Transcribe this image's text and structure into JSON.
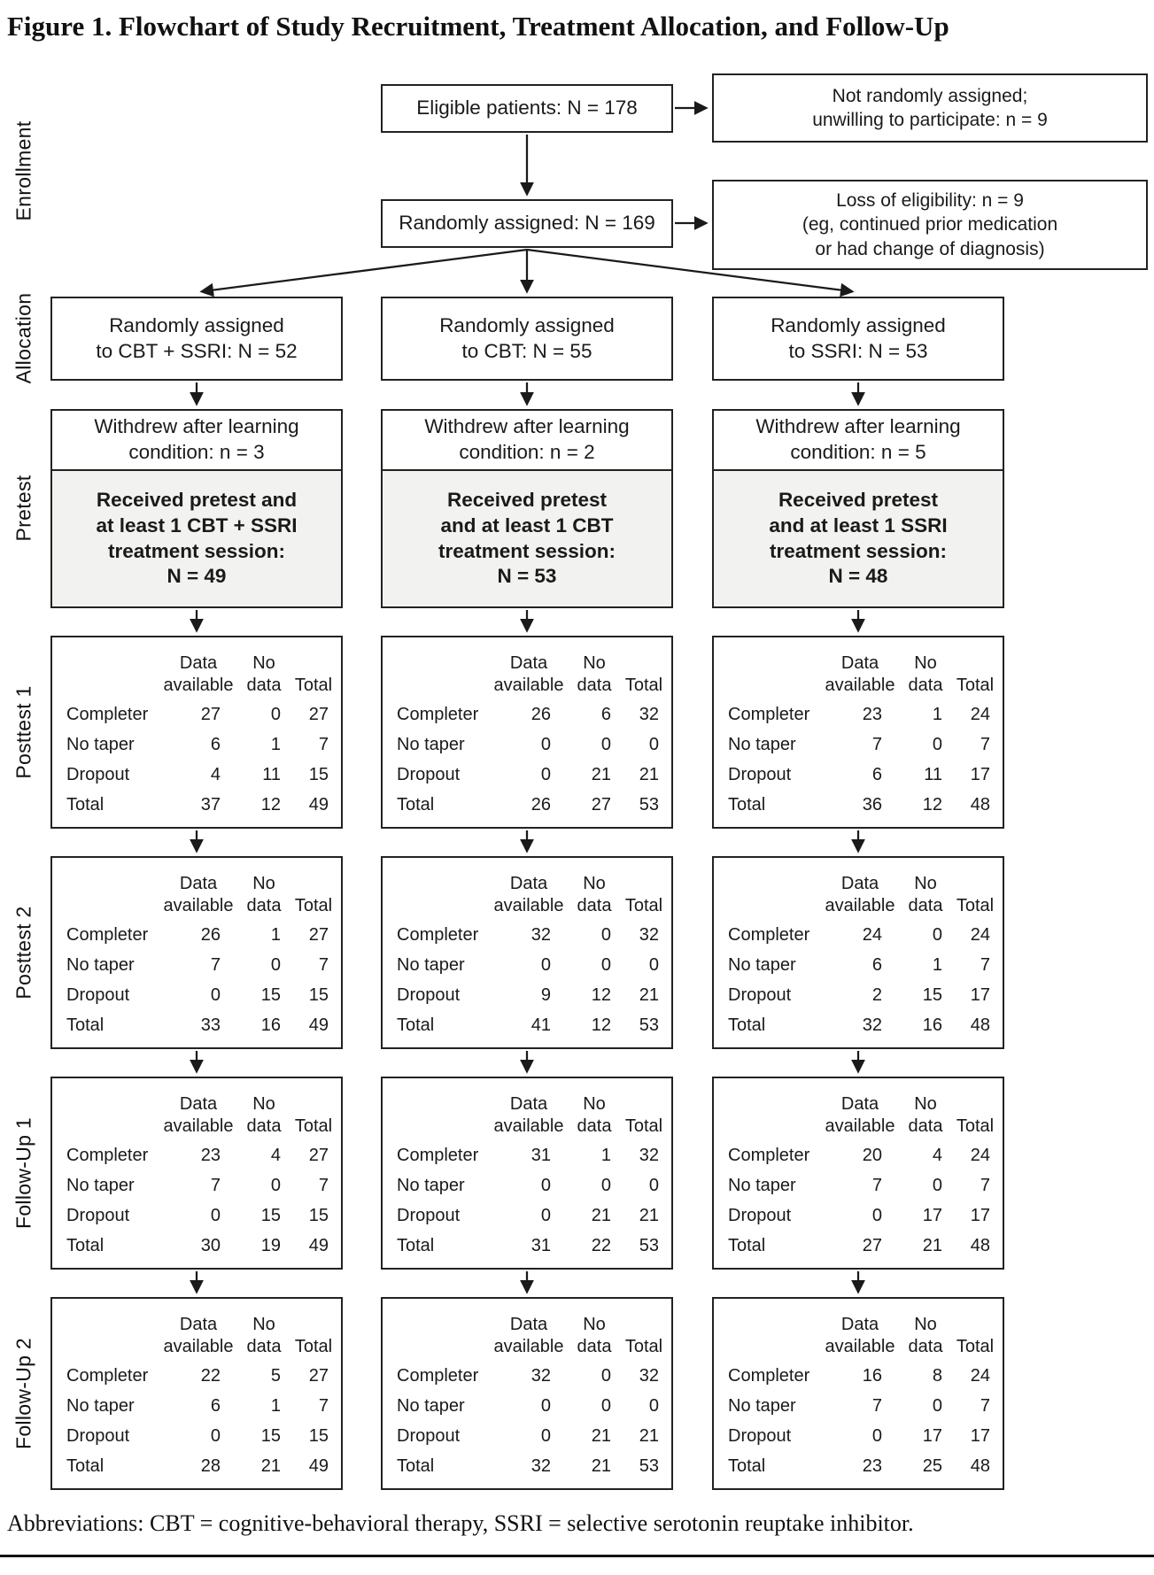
{
  "figure": {
    "title": "Figure 1. Flowchart of Study Recruitment, Treatment Allocation, and Follow-Up",
    "footnote": "Abbreviations: CBT = cognitive-behavioral therapy, SSRI = selective serotonin reuptake inhibitor."
  },
  "stage_labels": [
    "Enrollment",
    "Allocation",
    "Pretest",
    "Posttest 1",
    "Posttest 2",
    "Follow-Up 1",
    "Follow-Up 2"
  ],
  "enrollment": {
    "eligible": "Eligible patients: N = 178",
    "not_assigned": "Not randomly assigned;\nunwilling to participate: n = 9",
    "randomized": "Randomly assigned: N = 169",
    "loss_of_eligibility": "Loss of eligibility: n = 9\n(eg, continued prior medication\nor had change of diagnosis)"
  },
  "arms": [
    {
      "allocation": "Randomly assigned\nto CBT + SSRI: N = 52",
      "withdrew": "Withdrew after learning\ncondition: n = 3",
      "pretest": "Received pretest and\nat least 1 CBT + SSRI\ntreatment session:\nN = 49"
    },
    {
      "allocation": "Randomly assigned\nto CBT: N = 55",
      "withdrew": "Withdrew after learning\ncondition: n = 2",
      "pretest": "Received pretest\nand at least 1 CBT\ntreatment session:\nN = 53"
    },
    {
      "allocation": "Randomly assigned\nto SSRI: N = 53",
      "withdrew": "Withdrew after learning\ncondition: n = 5",
      "pretest": "Received pretest\nand at least 1 SSRI\ntreatment session:\nN = 48"
    }
  ],
  "table_header": {
    "label": "",
    "available": "Data available",
    "no_data": "No data",
    "total": "Total"
  },
  "row_labels": [
    "Completer",
    "No taper",
    "Dropout",
    "Total"
  ],
  "stages": [
    {
      "name": "Posttest 1",
      "tables": [
        [
          [
            27,
            0,
            27
          ],
          [
            6,
            1,
            7
          ],
          [
            4,
            11,
            15
          ],
          [
            37,
            12,
            49
          ]
        ],
        [
          [
            26,
            6,
            32
          ],
          [
            0,
            0,
            0
          ],
          [
            0,
            21,
            21
          ],
          [
            26,
            27,
            53
          ]
        ],
        [
          [
            23,
            1,
            24
          ],
          [
            7,
            0,
            7
          ],
          [
            6,
            11,
            17
          ],
          [
            36,
            12,
            48
          ]
        ]
      ]
    },
    {
      "name": "Posttest 2",
      "tables": [
        [
          [
            26,
            1,
            27
          ],
          [
            7,
            0,
            7
          ],
          [
            0,
            15,
            15
          ],
          [
            33,
            16,
            49
          ]
        ],
        [
          [
            32,
            0,
            32
          ],
          [
            0,
            0,
            0
          ],
          [
            9,
            12,
            21
          ],
          [
            41,
            12,
            53
          ]
        ],
        [
          [
            24,
            0,
            24
          ],
          [
            6,
            1,
            7
          ],
          [
            2,
            15,
            17
          ],
          [
            32,
            16,
            48
          ]
        ]
      ]
    },
    {
      "name": "Follow-Up 1",
      "tables": [
        [
          [
            23,
            4,
            27
          ],
          [
            7,
            0,
            7
          ],
          [
            0,
            15,
            15
          ],
          [
            30,
            19,
            49
          ]
        ],
        [
          [
            31,
            1,
            32
          ],
          [
            0,
            0,
            0
          ],
          [
            0,
            21,
            21
          ],
          [
            31,
            22,
            53
          ]
        ],
        [
          [
            20,
            4,
            24
          ],
          [
            7,
            0,
            7
          ],
          [
            0,
            17,
            17
          ],
          [
            27,
            21,
            48
          ]
        ]
      ]
    },
    {
      "name": "Follow-Up 2",
      "tables": [
        [
          [
            22,
            5,
            27
          ],
          [
            6,
            1,
            7
          ],
          [
            0,
            15,
            15
          ],
          [
            28,
            21,
            49
          ]
        ],
        [
          [
            32,
            0,
            32
          ],
          [
            0,
            0,
            0
          ],
          [
            0,
            21,
            21
          ],
          [
            32,
            21,
            53
          ]
        ],
        [
          [
            16,
            8,
            24
          ],
          [
            7,
            0,
            7
          ],
          [
            0,
            17,
            17
          ],
          [
            23,
            25,
            48
          ]
        ]
      ]
    }
  ]
}
